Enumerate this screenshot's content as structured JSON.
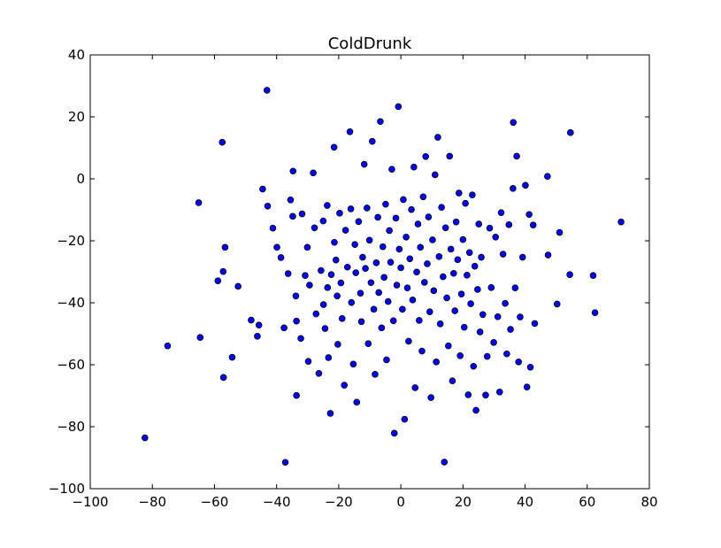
{
  "chart_data": {
    "type": "scatter",
    "title": "ColdDrunk",
    "xlabel": "",
    "ylabel": "",
    "xlim": [
      -100,
      80
    ],
    "ylim": [
      -100,
      40
    ],
    "xticks": [
      -100,
      -80,
      -60,
      -40,
      -20,
      0,
      20,
      40,
      60,
      80
    ],
    "yticks": [
      -100,
      -80,
      -60,
      -40,
      -20,
      0,
      20,
      40
    ],
    "grid": false,
    "marker_color": "#0000ff",
    "marker_edge_color": "#000000",
    "series": [
      {
        "points": [
          [
            -82.4,
            -83.6
          ],
          [
            -75.1,
            -53.9
          ],
          [
            -64.6,
            -51.2
          ],
          [
            -65.1,
            -7.7
          ],
          [
            -58.9,
            -32.9
          ],
          [
            -57.5,
            11.8
          ],
          [
            -56.6,
            -22.1
          ],
          [
            -57.2,
            -29.9
          ],
          [
            -57.1,
            -64.1
          ],
          [
            -54.3,
            -57.6
          ],
          [
            -52.4,
            -34.7
          ],
          [
            -48.2,
            -45.6
          ],
          [
            -46.2,
            -50.8
          ],
          [
            -45.7,
            -47.2
          ],
          [
            -43.1,
            28.6
          ],
          [
            -44.5,
            -3.3
          ],
          [
            -42.9,
            -8.8
          ],
          [
            -41.2,
            -15.9
          ],
          [
            -39.9,
            -22.1
          ],
          [
            -38.6,
            -25.4
          ],
          [
            -37.2,
            -91.5
          ],
          [
            -37.6,
            -48.1
          ],
          [
            -36.3,
            -30.6
          ],
          [
            -35.5,
            -6.8
          ],
          [
            -34.8,
            -12.1
          ],
          [
            -34.7,
            2.5
          ],
          [
            -33.8,
            -37.8
          ],
          [
            -33.6,
            -45.9
          ],
          [
            -33.6,
            -69.9
          ],
          [
            -32.2,
            -51.5
          ],
          [
            -31.8,
            -11.3
          ],
          [
            -30.8,
            -31.2
          ],
          [
            -30.1,
            -22.1
          ],
          [
            -29.8,
            -58.9
          ],
          [
            -29.4,
            -34.3
          ],
          [
            -28.2,
            1.9
          ],
          [
            -27.8,
            -15.8
          ],
          [
            -27.3,
            -43.6
          ],
          [
            -26.4,
            -62.8
          ],
          [
            -25.7,
            -29.6
          ],
          [
            -25.0,
            -13.6
          ],
          [
            -24.9,
            -40.6
          ],
          [
            -24.4,
            -48.3
          ],
          [
            -23.7,
            -8.6
          ],
          [
            -23.6,
            -35.1
          ],
          [
            -23.3,
            -57.7
          ],
          [
            -22.7,
            -75.7
          ],
          [
            -22.4,
            -30.9
          ],
          [
            -21.5,
            10.2
          ],
          [
            -21.4,
            -20.5
          ],
          [
            -20.9,
            -26.2
          ],
          [
            -20.5,
            -37.8
          ],
          [
            -20.3,
            -53.4
          ],
          [
            -19.7,
            -11.1
          ],
          [
            -19.3,
            -33.6
          ],
          [
            -18.9,
            -45.1
          ],
          [
            -18.2,
            -66.6
          ],
          [
            -17.8,
            -16.6
          ],
          [
            -17.2,
            -28.5
          ],
          [
            -16.4,
            15.2
          ],
          [
            -16.1,
            -9.7
          ],
          [
            -15.9,
            -39.9
          ],
          [
            -15.3,
            -59.8
          ],
          [
            -14.8,
            -21.2
          ],
          [
            -14.5,
            -30.3
          ],
          [
            -14.2,
            -72.1
          ],
          [
            -13.6,
            -13.8
          ],
          [
            -13.0,
            -36.9
          ],
          [
            -12.7,
            -46.1
          ],
          [
            -12.3,
            -25.3
          ],
          [
            -11.8,
            4.7
          ],
          [
            -11.4,
            -28.9
          ],
          [
            -10.9,
            -9.4
          ],
          [
            -10.5,
            -53.2
          ],
          [
            -10.1,
            -19.8
          ],
          [
            -9.6,
            -33.5
          ],
          [
            -9.2,
            12.1
          ],
          [
            -8.7,
            -42.1
          ],
          [
            -8.3,
            -63.1
          ],
          [
            -7.9,
            -27.1
          ],
          [
            -7.4,
            -12.4
          ],
          [
            -7.1,
            -36.7
          ],
          [
            -6.6,
            18.5
          ],
          [
            -6.2,
            -48.1
          ],
          [
            -5.8,
            -21.9
          ],
          [
            -5.4,
            -31.8
          ],
          [
            -4.9,
            -8.2
          ],
          [
            -4.6,
            -58.4
          ],
          [
            -4.1,
            -39.6
          ],
          [
            -3.7,
            -16.7
          ],
          [
            -3.3,
            -26.9
          ],
          [
            -2.9,
            3.1
          ],
          [
            -2.4,
            -45.8
          ],
          [
            -2.1,
            -82.1
          ],
          [
            -1.6,
            -12.7
          ],
          [
            -1.3,
            -34.3
          ],
          [
            -0.8,
            23.3
          ],
          [
            -0.5,
            -22.7
          ],
          [
            0.0,
            -28.7
          ],
          [
            0.5,
            -42.1
          ],
          [
            0.8,
            -6.7
          ],
          [
            1.2,
            -77.6
          ],
          [
            1.7,
            -18.8
          ],
          [
            2.1,
            -35.2
          ],
          [
            2.5,
            -52.4
          ],
          [
            2.9,
            -25.8
          ],
          [
            3.4,
            -9.9
          ],
          [
            3.8,
            -39.1
          ],
          [
            4.2,
            3.8
          ],
          [
            4.6,
            -67.4
          ],
          [
            5.1,
            -30.1
          ],
          [
            5.5,
            -14.6
          ],
          [
            5.9,
            -45.7
          ],
          [
            6.3,
            -22.1
          ],
          [
            6.8,
            -55.6
          ],
          [
            7.2,
            -5.8
          ],
          [
            7.6,
            -33.4
          ],
          [
            8.0,
            7.2
          ],
          [
            8.5,
            -27.4
          ],
          [
            8.9,
            -12.3
          ],
          [
            9.3,
            -42.9
          ],
          [
            9.7,
            -70.6
          ],
          [
            10.2,
            -19.7
          ],
          [
            10.6,
            -36.1
          ],
          [
            11.0,
            1.3
          ],
          [
            11.4,
            -59.1
          ],
          [
            11.9,
            13.4
          ],
          [
            12.3,
            -25.1
          ],
          [
            12.7,
            -46.8
          ],
          [
            13.1,
            -9.2
          ],
          [
            13.6,
            -31.6
          ],
          [
            14.0,
            -91.4
          ],
          [
            14.4,
            -15.8
          ],
          [
            14.8,
            -38.4
          ],
          [
            15.3,
            -53.9
          ],
          [
            15.7,
            7.3
          ],
          [
            16.1,
            -22.7
          ],
          [
            16.6,
            -65.2
          ],
          [
            17.0,
            -30.5
          ],
          [
            17.4,
            -42.6
          ],
          [
            17.8,
            -13.9
          ],
          [
            18.3,
            -26.1
          ],
          [
            18.7,
            -4.6
          ],
          [
            19.1,
            -57.1
          ],
          [
            19.5,
            -37.2
          ],
          [
            20.0,
            -19.6
          ],
          [
            20.4,
            -47.9
          ],
          [
            20.8,
            -7.9
          ],
          [
            21.3,
            -31.1
          ],
          [
            21.7,
            -69.7
          ],
          [
            22.1,
            -23.8
          ],
          [
            22.5,
            -40.3
          ],
          [
            23.0,
            -5.2
          ],
          [
            23.4,
            -60.5
          ],
          [
            23.8,
            -28.2
          ],
          [
            24.2,
            -74.7
          ],
          [
            24.7,
            -35.7
          ],
          [
            25.1,
            -14.6
          ],
          [
            25.5,
            -49.4
          ],
          [
            25.9,
            -25.3
          ],
          [
            26.4,
            -43.8
          ],
          [
            27.3,
            -69.8
          ],
          [
            27.8,
            -57.3
          ],
          [
            28.6,
            -15.9
          ],
          [
            29.1,
            -35.1
          ],
          [
            29.9,
            -52.8
          ],
          [
            30.5,
            -18.8
          ],
          [
            31.2,
            -44.5
          ],
          [
            31.8,
            -68.8
          ],
          [
            32.3,
            -10.9
          ],
          [
            32.9,
            -24.3
          ],
          [
            33.6,
            -40.2
          ],
          [
            34.1,
            -56.5
          ],
          [
            34.8,
            -14.8
          ],
          [
            35.3,
            -48.6
          ],
          [
            36.1,
            -3.1
          ],
          [
            36.2,
            18.2
          ],
          [
            36.8,
            -35.2
          ],
          [
            37.3,
            7.3
          ],
          [
            37.9,
            -59.1
          ],
          [
            38.4,
            -44.6
          ],
          [
            39.2,
            -25.3
          ],
          [
            40.1,
            -2.1
          ],
          [
            40.6,
            -67.2
          ],
          [
            41.3,
            -11.5
          ],
          [
            41.7,
            -60.8
          ],
          [
            42.6,
            -14.9
          ],
          [
            43.1,
            -46.7
          ],
          [
            47.2,
            0.8
          ],
          [
            47.4,
            -24.6
          ],
          [
            50.3,
            -40.4
          ],
          [
            51.1,
            -17.3
          ],
          [
            54.4,
            -30.9
          ],
          [
            54.6,
            14.9
          ],
          [
            61.9,
            -31.2
          ],
          [
            62.5,
            -43.2
          ],
          [
            70.9,
            -13.9
          ]
        ]
      }
    ]
  }
}
